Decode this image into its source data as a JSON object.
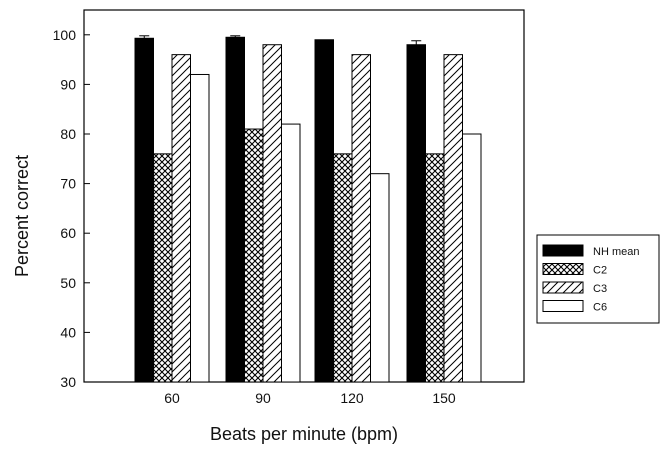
{
  "chart_data": {
    "type": "bar",
    "xlabel": "Beats per minute (bpm)",
    "ylabel": "Percent correct",
    "categories": [
      "60",
      "90",
      "120",
      "150"
    ],
    "ylim": [
      30,
      105
    ],
    "yticks": [
      30,
      40,
      50,
      60,
      70,
      80,
      90,
      100
    ],
    "series": [
      {
        "name": "NH mean",
        "values": [
          99.3,
          99.5,
          99.0,
          98.0
        ],
        "errors": [
          0.5,
          0.3,
          0,
          0.8
        ],
        "fill": "solid"
      },
      {
        "name": "C2",
        "values": [
          76,
          81,
          76,
          76
        ],
        "fill": "crosshatch"
      },
      {
        "name": "C3",
        "values": [
          96,
          98,
          96,
          96
        ],
        "fill": "diagonal"
      },
      {
        "name": "C6",
        "values": [
          92,
          82,
          72,
          80
        ],
        "fill": "empty"
      }
    ],
    "legend_position": "right"
  }
}
